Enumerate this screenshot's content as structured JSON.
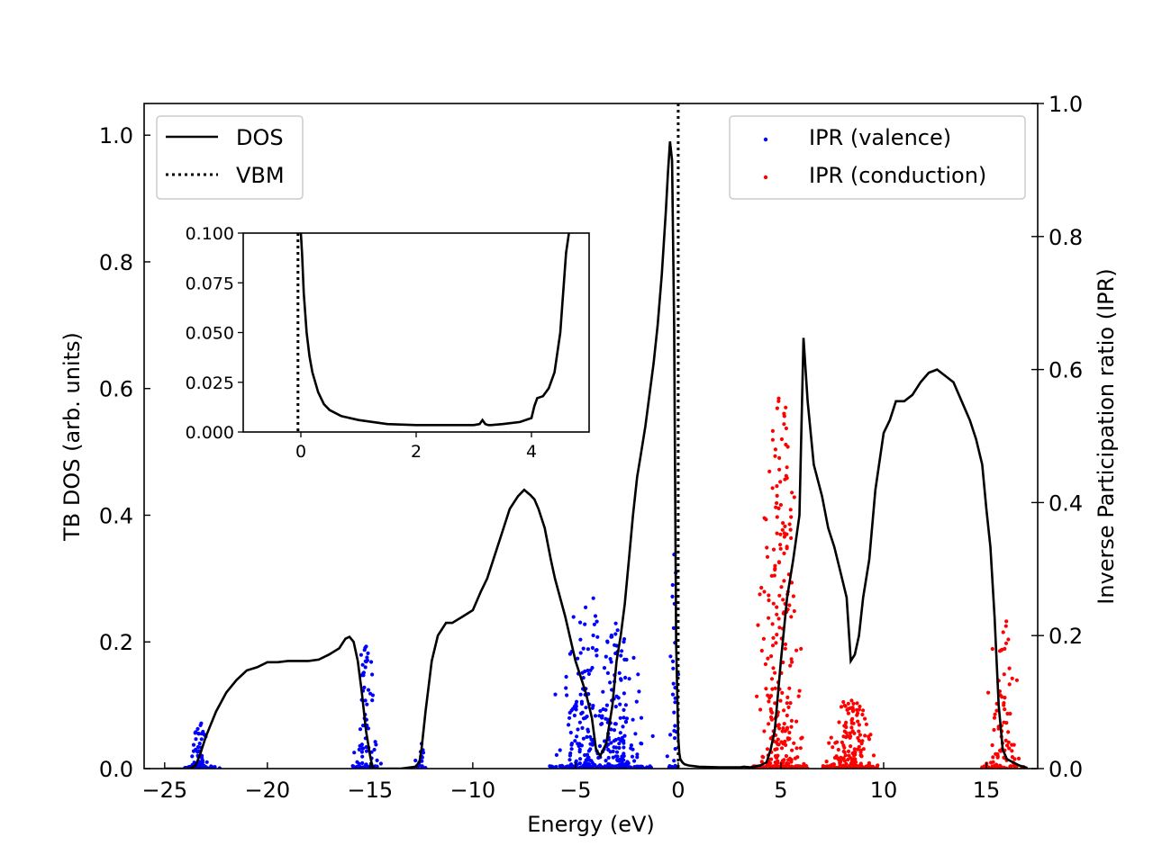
{
  "chart_data": {
    "type": "line",
    "xlabel": "Energy (eV)",
    "ylabel": "TB DOS (arb. units)",
    "y2label": "Inverse Participation ratio (IPR)",
    "xlim": [
      -26,
      17.5
    ],
    "ylim": [
      0,
      1.05
    ],
    "y2lim": [
      0,
      1.0
    ],
    "x_ticks": [
      -25,
      -20,
      -15,
      -10,
      -5,
      0,
      5,
      10,
      15
    ],
    "x_tick_labels": [
      "−25",
      "−20",
      "−15",
      "−10",
      "−5",
      "0",
      "5",
      "10",
      "15"
    ],
    "y_ticks": [
      0,
      0.2,
      0.4,
      0.6,
      0.8,
      1.0
    ],
    "y_tick_labels": [
      "0.0",
      "0.2",
      "0.4",
      "0.6",
      "0.8",
      "1.0"
    ],
    "y2_ticks": [
      0,
      0.2,
      0.4,
      0.6,
      0.8,
      1.0
    ],
    "y2_tick_labels": [
      "0.0",
      "0.2",
      "0.4",
      "0.6",
      "0.8",
      "1.0"
    ],
    "vbm": 0,
    "legend_left": {
      "placement": "top-left",
      "entries": [
        {
          "label": "DOS",
          "style": "solid",
          "color": "#000000"
        },
        {
          "label": "VBM",
          "style": "dotted",
          "color": "#000000"
        }
      ]
    },
    "legend_right": {
      "placement": "top-right",
      "entries": [
        {
          "label": "IPR (valence)",
          "color": "#0000ff"
        },
        {
          "label": "IPR (conduction)",
          "color": "#ff0000"
        }
      ]
    },
    "series": [
      {
        "name": "DOS",
        "axis": "left",
        "color": "#000000",
        "x": [
          -25,
          -23.8,
          -23.5,
          -23.3,
          -23,
          -22.5,
          -22,
          -21.5,
          -21,
          -20.5,
          -20,
          -19.5,
          -19,
          -18.5,
          -18,
          -17.5,
          -17,
          -16.5,
          -16.2,
          -16,
          -15.8,
          -15.6,
          -15.4,
          -15.2,
          -15,
          -14.9,
          -14.8,
          -13.5,
          -12.8,
          -12.6,
          -12.5,
          -12.3,
          -12,
          -11.7,
          -11.3,
          -11,
          -10.5,
          -10,
          -9.6,
          -9.3,
          -9,
          -8.6,
          -8.2,
          -7.8,
          -7.5,
          -7.2,
          -7,
          -6.8,
          -6.5,
          -6.2,
          -6,
          -5.5,
          -5,
          -4.5,
          -4.2,
          -4,
          -3.8,
          -3.5,
          -3.2,
          -3,
          -2.8,
          -2.6,
          -2.4,
          -2.2,
          -2,
          -1.8,
          -1.6,
          -1.4,
          -1.2,
          -1,
          -0.8,
          -0.6,
          -0.5,
          -0.4,
          -0.3,
          -0.2,
          -0.1,
          0,
          0.05,
          0.1,
          0.2,
          0.3,
          0.5,
          1,
          2,
          3,
          3.2,
          3.5,
          4,
          4.3,
          4.5,
          4.7,
          5,
          5.3,
          5.6,
          5.9,
          6.1,
          6.3,
          6.6,
          7,
          7.3,
          7.6,
          7.9,
          8.2,
          8.4,
          8.6,
          8.8,
          9,
          9.3,
          9.6,
          10,
          10.3,
          10.6,
          11,
          11.4,
          11.8,
          12.2,
          12.6,
          13,
          13.4,
          13.8,
          14.2,
          14.5,
          14.8,
          15,
          15.2,
          15.4,
          15.6,
          15.8,
          16,
          16.3,
          16.6,
          17
        ],
        "y": [
          0,
          0,
          0.005,
          0.02,
          0.05,
          0.09,
          0.12,
          0.14,
          0.155,
          0.16,
          0.168,
          0.168,
          0.17,
          0.17,
          0.17,
          0.172,
          0.18,
          0.19,
          0.205,
          0.208,
          0.2,
          0.17,
          0.12,
          0.06,
          0.02,
          0.005,
          0,
          0,
          0.003,
          0.01,
          0.03,
          0.09,
          0.17,
          0.21,
          0.23,
          0.23,
          0.24,
          0.25,
          0.28,
          0.3,
          0.33,
          0.37,
          0.41,
          0.43,
          0.44,
          0.432,
          0.425,
          0.41,
          0.38,
          0.33,
          0.3,
          0.24,
          0.17,
          0.12,
          0.08,
          0.03,
          0.02,
          0.04,
          0.1,
          0.17,
          0.21,
          0.26,
          0.33,
          0.4,
          0.46,
          0.5,
          0.54,
          0.59,
          0.64,
          0.7,
          0.78,
          0.88,
          0.94,
          0.99,
          0.96,
          0.7,
          0.2,
          0.05,
          0.025,
          0.015,
          0.01,
          0.007,
          0.005,
          0.003,
          0.002,
          0.002,
          0.003,
          0.002,
          0.005,
          0.01,
          0.03,
          0.06,
          0.17,
          0.27,
          0.33,
          0.4,
          0.68,
          0.58,
          0.48,
          0.43,
          0.38,
          0.35,
          0.31,
          0.27,
          0.17,
          0.18,
          0.21,
          0.27,
          0.33,
          0.44,
          0.53,
          0.55,
          0.58,
          0.58,
          0.59,
          0.61,
          0.625,
          0.63,
          0.62,
          0.61,
          0.58,
          0.55,
          0.52,
          0.48,
          0.41,
          0.35,
          0.24,
          0.1,
          0.03,
          0.015,
          0.01,
          0.005,
          0.001
        ]
      }
    ],
    "ipr_valence_clusters": [
      {
        "center": -23.3,
        "spread": 0.25,
        "max": 0.07,
        "count": 55
      },
      {
        "center": -15.2,
        "spread": 0.22,
        "max": 0.2,
        "count": 70
      },
      {
        "center": -12.5,
        "spread": 0.12,
        "max": 0.04,
        "count": 14
      },
      {
        "center": -4.5,
        "spread": 0.6,
        "max": 0.28,
        "count": 170
      },
      {
        "center": -2.9,
        "spread": 0.55,
        "max": 0.22,
        "count": 150
      },
      {
        "center": -0.2,
        "spread": 0.1,
        "max": 0.33,
        "count": 30
      }
    ],
    "ipr_conduction_clusters": [
      {
        "center": 5.0,
        "spread": 0.45,
        "max": 0.57,
        "count": 260
      },
      {
        "center": 8.4,
        "spread": 0.45,
        "max": 0.11,
        "count": 160
      },
      {
        "center": 15.8,
        "spread": 0.35,
        "max": 0.24,
        "count": 80
      }
    ],
    "inset": {
      "xlim": [
        -1,
        5
      ],
      "ylim": [
        0,
        0.1
      ],
      "x_ticks": [
        0,
        2,
        4
      ],
      "x_tick_labels": [
        "0",
        "2",
        "4"
      ],
      "y_ticks": [
        0,
        0.025,
        0.05,
        0.075,
        0.1
      ],
      "y_tick_labels": [
        "0.000",
        "0.025",
        "0.050",
        "0.075",
        "0.100"
      ],
      "x": [
        0.0,
        0.02,
        0.05,
        0.1,
        0.15,
        0.2,
        0.3,
        0.4,
        0.5,
        0.7,
        1.0,
        1.5,
        2.0,
        2.5,
        3.0,
        3.1,
        3.15,
        3.2,
        3.25,
        3.3,
        3.5,
        3.8,
        4.0,
        4.05,
        4.1,
        4.2,
        4.3,
        4.4,
        4.5,
        4.55,
        4.6,
        4.65
      ],
      "y": [
        0.1,
        0.09,
        0.07,
        0.05,
        0.038,
        0.03,
        0.02,
        0.014,
        0.011,
        0.008,
        0.006,
        0.004,
        0.0035,
        0.0035,
        0.0035,
        0.004,
        0.006,
        0.004,
        0.0035,
        0.0035,
        0.004,
        0.005,
        0.007,
        0.013,
        0.017,
        0.018,
        0.022,
        0.03,
        0.05,
        0.07,
        0.09,
        0.1
      ]
    }
  }
}
